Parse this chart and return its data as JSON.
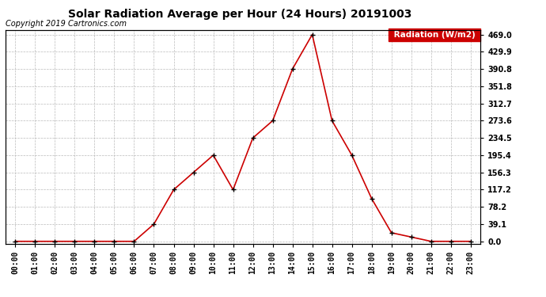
{
  "title": "Solar Radiation Average per Hour (24 Hours) 20191003",
  "copyright_text": "Copyright 2019 Cartronics.com",
  "legend_label": "Radiation (W/m2)",
  "hours": [
    "00:00",
    "01:00",
    "02:00",
    "03:00",
    "04:00",
    "05:00",
    "06:00",
    "07:00",
    "08:00",
    "09:00",
    "10:00",
    "11:00",
    "12:00",
    "13:00",
    "14:00",
    "15:00",
    "16:00",
    "17:00",
    "18:00",
    "19:00",
    "20:00",
    "21:00",
    "22:00",
    "23:00"
  ],
  "values": [
    0.0,
    0.0,
    0.0,
    0.0,
    0.0,
    0.0,
    0.0,
    39.1,
    117.2,
    156.3,
    195.4,
    117.2,
    234.5,
    273.6,
    390.8,
    469.0,
    273.6,
    195.4,
    97.0,
    19.5,
    9.8,
    0.0,
    0.0,
    0.0
  ],
  "yticks": [
    0.0,
    39.1,
    78.2,
    117.2,
    156.3,
    195.4,
    234.5,
    273.6,
    312.7,
    351.8,
    390.8,
    429.9,
    469.0
  ],
  "line_color": "#cc0000",
  "marker_color": "#000000",
  "bg_color": "#ffffff",
  "grid_color": "#bbbbbb",
  "title_fontsize": 10,
  "copyright_fontsize": 7,
  "tick_fontsize": 7,
  "legend_bg": "#cc0000",
  "legend_text_color": "#ffffff",
  "ylim_min": -5,
  "ylim_max": 480
}
